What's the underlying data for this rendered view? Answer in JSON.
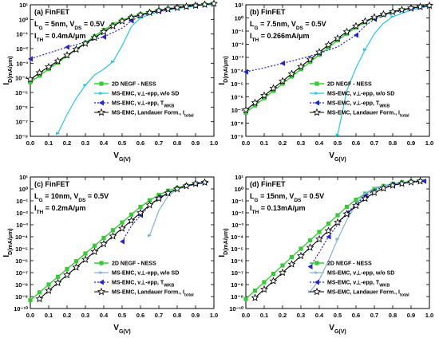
{
  "figure": {
    "xlabel": "V_G(V)",
    "ylabel": "I_D(mA/μm)",
    "legend": [
      "2D NEGF - NESS",
      "MS-EMC, v⊥-epp, w/o SD",
      "MS-EMC, v⊥-epp, T_WKB",
      "MS-EMC, Landauer Form., I_total"
    ]
  },
  "colors": {
    "negf": "#33cc33",
    "wosd_a": "#22c8e0",
    "wosd_c": "#7fb0e0",
    "twkb": "#2222dd",
    "landauer": "#000000"
  },
  "chart_data": [
    {
      "type": "line",
      "log_y": true,
      "title": "(a) FinFET",
      "annotations": [
        "L_G = 5nm, V_DS = 0.5V",
        "I_TH = 0.4mA/μm"
      ],
      "xlim": [
        0,
        1.0
      ],
      "ylim_exp": [
        -8,
        1
      ],
      "xticks": [
        "0.0",
        "0.1",
        "0.2",
        "0.3",
        "0.4",
        "0.5",
        "0.6",
        "0.7",
        "0.8",
        "0.9",
        "1.0"
      ],
      "yticks": [
        "10⁻⁸",
        "10⁻⁷",
        "10⁻⁶",
        "10⁻⁵",
        "10⁻⁴",
        "10⁻³",
        "10⁻²",
        "10⁻¹",
        "10⁰",
        "10¹"
      ],
      "series": [
        {
          "name": "2D NEGF - NESS",
          "x": [
            0,
            0.05,
            0.1,
            0.15,
            0.2,
            0.25,
            0.3,
            0.35,
            0.4,
            0.45,
            0.5,
            0.55,
            0.6,
            0.65,
            0.7,
            0.75,
            0.8,
            0.85,
            0.9,
            0.95,
            1.0
          ],
          "y": [
            -4.3,
            -3.85,
            -3.4,
            -2.95,
            -2.5,
            -2.05,
            -1.6,
            -1.15,
            -0.72,
            -0.35,
            -0.05,
            0.18,
            0.35,
            0.5,
            0.62,
            0.73,
            0.82,
            0.9,
            0.97,
            1.03,
            1.08
          ]
        },
        {
          "name": "MS-EMC, v⊥-epp, w/o SD",
          "x": [
            0.15,
            0.2,
            0.25,
            0.3,
            0.35,
            0.4,
            0.45,
            0.5,
            0.55,
            0.6,
            0.65,
            0.7,
            0.8,
            0.9,
            1.0
          ],
          "y": [
            -7.8,
            -6.5,
            -5.4,
            -4.5,
            -3.8,
            -3.4,
            -2.9,
            -1.8,
            -0.5,
            0.1,
            0.35,
            0.52,
            0.75,
            0.92,
            1.05
          ]
        },
        {
          "name": "MS-EMC, v⊥-epp, T_WKB",
          "x": [
            0,
            0.1,
            0.2,
            0.3,
            0.4,
            0.5,
            0.55,
            0.6,
            0.7,
            0.8,
            0.9,
            1.0
          ],
          "y": [
            -2.7,
            -2.3,
            -1.9,
            -1.55,
            -1.2,
            -0.6,
            -0.1,
            0.25,
            0.55,
            0.78,
            0.95,
            1.08
          ]
        },
        {
          "name": "MS-EMC, Landauer Form., I_total",
          "x": [
            0,
            0.05,
            0.1,
            0.15,
            0.2,
            0.25,
            0.3,
            0.35,
            0.4,
            0.45,
            0.5,
            0.55,
            0.6,
            0.65,
            0.7,
            0.75,
            0.8,
            0.85,
            0.9,
            0.95,
            1.0
          ],
          "y": [
            -4.1,
            -3.65,
            -3.25,
            -2.85,
            -2.45,
            -2.05,
            -1.65,
            -1.25,
            -0.85,
            -0.45,
            -0.12,
            0.12,
            0.3,
            0.46,
            0.6,
            0.7,
            0.8,
            0.88,
            0.95,
            1.02,
            1.08
          ]
        }
      ]
    },
    {
      "type": "line",
      "log_y": true,
      "title": "(b) FinFET",
      "annotations": [
        "L_G = 7.5nm, V_DS = 0.5V",
        "I_TH = 0.266mA/μm"
      ],
      "xlim": [
        0,
        1.0
      ],
      "ylim_exp": [
        -9,
        1
      ],
      "xticks": [
        "0.0",
        "0.1",
        "0.2",
        "0.3",
        "0.4",
        "0.5",
        "0.6",
        "0.7",
        "0.8",
        "0.9",
        "1.0"
      ],
      "yticks": [
        "10⁻⁹",
        "10⁻⁸",
        "10⁻⁷",
        "10⁻⁶",
        "10⁻⁵",
        "10⁻⁴",
        "10⁻³",
        "10⁻²",
        "10⁻¹",
        "10⁰",
        "10¹"
      ],
      "series": [
        {
          "name": "2D NEGF - NESS",
          "x": [
            0,
            0.05,
            0.1,
            0.15,
            0.2,
            0.25,
            0.3,
            0.35,
            0.4,
            0.45,
            0.5,
            0.55,
            0.6,
            0.65,
            0.7,
            0.75,
            0.8,
            0.85,
            0.9,
            0.95,
            1.0
          ],
          "y": [
            -7.2,
            -6.65,
            -6.1,
            -5.55,
            -5.0,
            -4.45,
            -3.9,
            -3.35,
            -2.8,
            -2.25,
            -1.7,
            -1.2,
            -0.72,
            -0.32,
            0.0,
            0.25,
            0.45,
            0.6,
            0.73,
            0.84,
            0.93
          ]
        },
        {
          "name": "MS-EMC, v⊥-epp, w/o SD",
          "x": [
            0.5,
            0.55,
            0.6,
            0.65,
            0.7,
            0.75,
            0.8,
            0.9,
            1.0
          ],
          "y": [
            -8.9,
            -5.5,
            -3.8,
            -2.4,
            -1.2,
            -0.4,
            0.1,
            0.6,
            0.9
          ]
        },
        {
          "name": "MS-EMC, v⊥-epp, T_WKB",
          "x": [
            0,
            0.1,
            0.2,
            0.3,
            0.4,
            0.5,
            0.6,
            0.65,
            0.7,
            0.8,
            0.9,
            1.0
          ],
          "y": [
            -4.1,
            -3.8,
            -3.45,
            -3.1,
            -2.7,
            -2.2,
            -1.3,
            -0.6,
            -0.1,
            0.4,
            0.7,
            0.92
          ]
        },
        {
          "name": "MS-EMC, Landauer Form., I_total",
          "x": [
            0,
            0.05,
            0.1,
            0.15,
            0.2,
            0.25,
            0.3,
            0.35,
            0.4,
            0.45,
            0.5,
            0.55,
            0.6,
            0.65,
            0.7,
            0.75,
            0.8,
            0.85,
            0.9,
            0.95,
            1.0
          ],
          "y": [
            -7.0,
            -6.45,
            -5.9,
            -5.35,
            -4.8,
            -4.25,
            -3.7,
            -3.15,
            -2.6,
            -2.05,
            -1.55,
            -1.05,
            -0.62,
            -0.25,
            0.05,
            0.28,
            0.47,
            0.62,
            0.75,
            0.85,
            0.94
          ]
        }
      ]
    },
    {
      "type": "line",
      "log_y": true,
      "title": "(c) FinFET",
      "annotations": [
        "L_G = 10nm, V_DS = 0.5V",
        "I_TH = 0.2mA/μm"
      ],
      "xlim": [
        0,
        1.0
      ],
      "ylim_exp": [
        -10,
        1
      ],
      "xticks": [
        "0.0",
        "0.1",
        "0.2",
        "0.3",
        "0.4",
        "0.5",
        "0.6",
        "0.7",
        "0.8",
        "0.9",
        "1.0"
      ],
      "yticks": [
        "10⁻¹⁰",
        "10⁻⁹",
        "10⁻⁸",
        "10⁻⁷",
        "10⁻⁶",
        "10⁻⁵",
        "10⁻⁴",
        "10⁻³",
        "10⁻²",
        "10⁻¹",
        "10⁰",
        "10¹"
      ],
      "series": [
        {
          "name": "2D NEGF - NESS",
          "x": [
            0,
            0.05,
            0.1,
            0.15,
            0.2,
            0.25,
            0.3,
            0.35,
            0.4,
            0.45,
            0.5,
            0.55,
            0.6,
            0.65,
            0.7,
            0.75,
            0.8,
            0.85,
            0.9,
            0.95
          ],
          "y": [
            -9.3,
            -8.65,
            -8.0,
            -7.35,
            -6.7,
            -6.05,
            -5.4,
            -4.75,
            -4.1,
            -3.45,
            -2.8,
            -2.15,
            -1.5,
            -0.95,
            -0.5,
            -0.15,
            0.1,
            0.3,
            0.45,
            0.55
          ]
        },
        {
          "name": "MS-EMC, v⊥-epp, w/o SD",
          "x": [
            0.65,
            0.7,
            0.75,
            0.8,
            0.9,
            0.97
          ],
          "y": [
            -3.9,
            -1.8,
            -0.6,
            0.0,
            0.4,
            0.55
          ]
        },
        {
          "name": "MS-EMC, v⊥-epp, T_WKB",
          "x": [
            0.5,
            0.55,
            0.6,
            0.65,
            0.7,
            0.8,
            0.9,
            0.97
          ],
          "y": [
            -4.4,
            -3.1,
            -2.2,
            -1.4,
            -0.7,
            0.0,
            0.4,
            0.55
          ]
        },
        {
          "name": "MS-EMC, Landauer Form., I_total",
          "x": [
            0.05,
            0.1,
            0.15,
            0.2,
            0.25,
            0.3,
            0.35,
            0.4,
            0.45,
            0.5,
            0.55,
            0.6,
            0.65,
            0.7,
            0.75,
            0.8,
            0.85,
            0.9,
            0.95
          ],
          "y": [
            -9.2,
            -8.5,
            -7.85,
            -7.2,
            -6.55,
            -5.9,
            -5.25,
            -4.6,
            -3.95,
            -3.3,
            -2.65,
            -2.0,
            -1.35,
            -0.8,
            -0.35,
            0.0,
            0.25,
            0.45,
            0.55
          ]
        }
      ]
    },
    {
      "type": "line",
      "log_y": true,
      "title": "(d) FinFET",
      "annotations": [
        "L_G = 15nm, V_DS = 0.5V",
        "I_TH = 0.13mA/μm"
      ],
      "xlim": [
        0,
        1.0
      ],
      "ylim_exp": [
        -10,
        1
      ],
      "xticks": [
        "0.0",
        "0.1",
        "0.2",
        "0.3",
        "0.4",
        "0.5",
        "0.6",
        "0.7",
        "0.8",
        "0.9",
        "1.0"
      ],
      "yticks": [
        "10⁻¹⁰",
        "10⁻⁹",
        "10⁻⁸",
        "10⁻⁷",
        "10⁻⁶",
        "10⁻⁵",
        "10⁻⁴",
        "10⁻³",
        "10⁻²",
        "10⁻¹",
        "10⁰",
        "10¹"
      ],
      "series": [
        {
          "name": "2D NEGF - NESS",
          "x": [
            0,
            0.05,
            0.1,
            0.15,
            0.2,
            0.25,
            0.3,
            0.35,
            0.4,
            0.45,
            0.5,
            0.55,
            0.6,
            0.65,
            0.7,
            0.75,
            0.8,
            0.85,
            0.9,
            0.95
          ],
          "y": [
            -9.2,
            -8.5,
            -7.8,
            -7.1,
            -6.4,
            -5.7,
            -5.0,
            -4.3,
            -3.6,
            -2.9,
            -2.2,
            -1.5,
            -0.9,
            -0.4,
            0.0,
            0.25,
            0.42,
            0.55,
            0.62,
            0.65
          ]
        },
        {
          "name": "MS-EMC, v⊥-epp, w/o SD",
          "x": [
            0.35,
            0.4,
            0.45,
            0.5,
            0.55,
            0.6,
            0.65,
            0.7,
            0.8,
            0.9,
            0.97
          ],
          "y": [
            -8.6,
            -7.6,
            -6.0,
            -4.2,
            -2.6,
            -1.3,
            -0.4,
            0.1,
            0.45,
            0.6,
            0.65
          ]
        },
        {
          "name": "MS-EMC, v⊥-epp, T_WKB",
          "x": [
            0.35,
            0.4,
            0.45,
            0.5,
            0.55,
            0.6,
            0.65,
            0.7,
            0.8,
            0.9,
            0.97
          ],
          "y": [
            -6.5,
            -5.3,
            -4.0,
            -3.0,
            -2.0,
            -1.3,
            -0.6,
            -0.1,
            0.35,
            0.55,
            0.65
          ]
        },
        {
          "name": "MS-EMC, Landauer Form., I_total",
          "x": [
            0.05,
            0.1,
            0.15,
            0.2,
            0.25,
            0.3,
            0.35,
            0.4,
            0.45,
            0.5,
            0.55,
            0.6,
            0.65,
            0.7,
            0.75,
            0.8,
            0.85,
            0.9,
            0.95
          ],
          "y": [
            -9.1,
            -8.4,
            -7.7,
            -7.0,
            -6.3,
            -5.6,
            -4.9,
            -4.2,
            -3.5,
            -2.8,
            -2.1,
            -1.4,
            -0.8,
            -0.3,
            0.05,
            0.3,
            0.45,
            0.57,
            0.65
          ]
        }
      ]
    }
  ]
}
